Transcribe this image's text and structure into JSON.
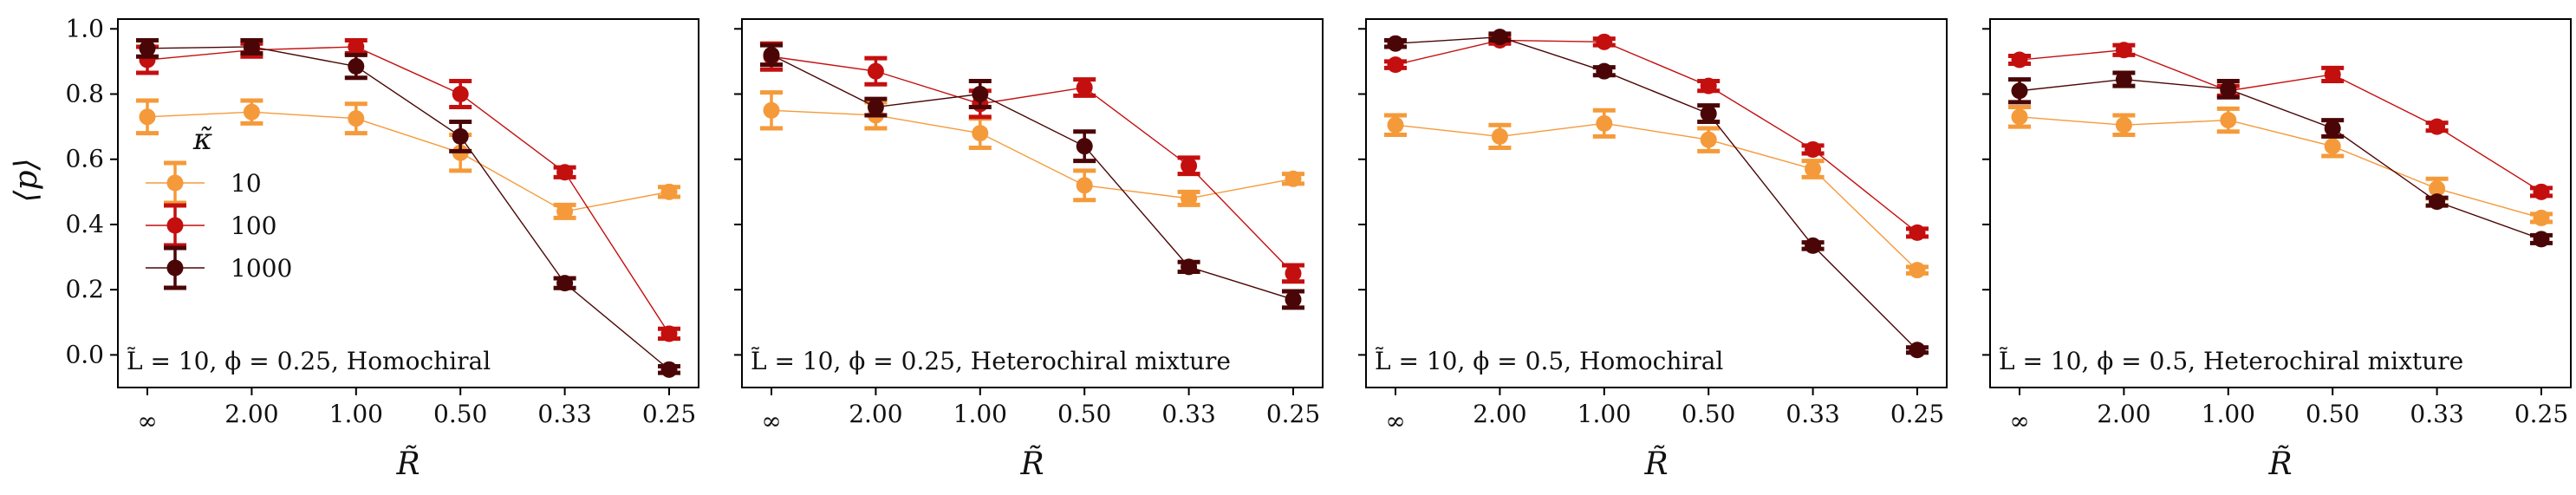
{
  "chart_data": {
    "type": "line",
    "ylabel": "⟨p⟩",
    "xlabel": "R̃",
    "categories": [
      "∞",
      "2.00",
      "1.00",
      "0.50",
      "0.33",
      "0.25"
    ],
    "yticks": [
      "0.0",
      "0.2",
      "0.4",
      "0.6",
      "0.8",
      "1.0"
    ],
    "ylim": [
      -0.1,
      1.03
    ],
    "legend": {
      "title": "κ̃",
      "location": "center-left of first panel",
      "entries": [
        "10",
        "100",
        "1000"
      ]
    },
    "colors": {
      "10": "#f59a3a",
      "100": "#c40f0f",
      "1000": "#4a0606"
    },
    "panels": [
      {
        "annotation": "L̃ = 10, ϕ = 0.25, Homochiral",
        "series": [
          {
            "name": "10",
            "values": [
              0.73,
              0.745,
              0.725,
              0.62,
              0.44,
              0.5
            ],
            "errors": [
              0.05,
              0.035,
              0.045,
              0.055,
              0.02,
              0.015
            ]
          },
          {
            "name": "100",
            "values": [
              0.905,
              0.935,
              0.945,
              0.8,
              0.56,
              0.065
            ],
            "errors": [
              0.04,
              0.02,
              0.02,
              0.04,
              0.015,
              0.015
            ]
          },
          {
            "name": "1000",
            "values": [
              0.94,
              0.945,
              0.885,
              0.67,
              0.22,
              -0.045
            ],
            "errors": [
              0.025,
              0.02,
              0.035,
              0.045,
              0.015,
              0.01
            ]
          }
        ]
      },
      {
        "annotation": "L̃ = 10, ϕ = 0.25, Heterochiral mixture",
        "series": [
          {
            "name": "10",
            "values": [
              0.75,
              0.735,
              0.68,
              0.52,
              0.48,
              0.54
            ],
            "errors": [
              0.055,
              0.04,
              0.045,
              0.045,
              0.02,
              0.015
            ]
          },
          {
            "name": "100",
            "values": [
              0.915,
              0.87,
              0.77,
              0.82,
              0.58,
              0.25
            ],
            "errors": [
              0.04,
              0.04,
              0.04,
              0.025,
              0.025,
              0.025
            ]
          },
          {
            "name": "1000",
            "values": [
              0.92,
              0.76,
              0.8,
              0.64,
              0.27,
              0.17
            ],
            "errors": [
              0.03,
              0.025,
              0.04,
              0.045,
              0.015,
              0.025
            ]
          }
        ]
      },
      {
        "annotation": "L̃ = 10, ϕ = 0.5, Homochiral",
        "series": [
          {
            "name": "10",
            "values": [
              0.705,
              0.67,
              0.71,
              0.66,
              0.57,
              0.26
            ],
            "errors": [
              0.03,
              0.035,
              0.04,
              0.035,
              0.025,
              0.01
            ]
          },
          {
            "name": "100",
            "values": [
              0.89,
              0.965,
              0.96,
              0.825,
              0.63,
              0.375
            ],
            "errors": [
              0.01,
              0.01,
              0.01,
              0.015,
              0.012,
              0.012
            ]
          },
          {
            "name": "1000",
            "values": [
              0.955,
              0.975,
              0.87,
              0.74,
              0.335,
              0.015
            ],
            "errors": [
              0.01,
              0.01,
              0.012,
              0.025,
              0.01,
              0.008
            ]
          }
        ]
      },
      {
        "annotation": "L̃ = 10, ϕ = 0.5, Heterochiral mixture",
        "series": [
          {
            "name": "10",
            "values": [
              0.73,
              0.705,
              0.72,
              0.64,
              0.51,
              0.42
            ],
            "errors": [
              0.03,
              0.03,
              0.035,
              0.03,
              0.03,
              0.012
            ]
          },
          {
            "name": "100",
            "values": [
              0.905,
              0.935,
              0.81,
              0.86,
              0.7,
              0.5
            ],
            "errors": [
              0.012,
              0.015,
              0.015,
              0.02,
              0.012,
              0.012
            ]
          },
          {
            "name": "1000",
            "values": [
              0.81,
              0.845,
              0.815,
              0.695,
              0.47,
              0.355
            ],
            "errors": [
              0.035,
              0.02,
              0.025,
              0.025,
              0.012,
              0.012
            ]
          }
        ]
      }
    ]
  }
}
